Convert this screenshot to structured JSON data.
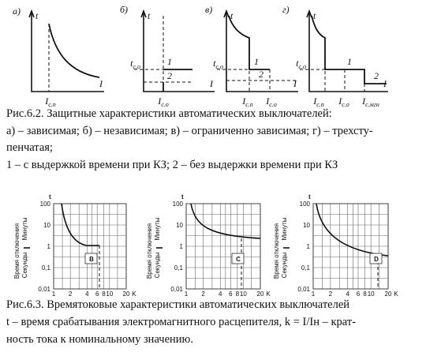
{
  "fig1": {
    "panels": [
      {
        "letter": "а)",
        "t": "t",
        "I": "I",
        "xticks": [
          {
            "main": "I",
            "sub": "с.п"
          }
        ]
      },
      {
        "letter": "б)",
        "t": "t",
        "I": "I",
        "tco": {
          "main": "t",
          "sub": "с.о"
        },
        "c1": "1",
        "c2": "2",
        "xticks": [
          {
            "main": "I",
            "sub": "с.о"
          }
        ]
      },
      {
        "letter": "в)",
        "t": "t",
        "I": "I",
        "tco": {
          "main": "t",
          "sub": "с.о"
        },
        "c1": "1",
        "c2": "2",
        "xticks": [
          {
            "main": "I",
            "sub": "с.п"
          },
          {
            "main": "I",
            "sub": "с.о"
          }
        ]
      },
      {
        "letter": "г)",
        "t": "t",
        "I": "I",
        "tco": {
          "main": "t",
          "sub": "с.о"
        },
        "c1": "1",
        "c2": "2",
        "xticks": [
          {
            "main": "I",
            "sub": "с.п"
          },
          {
            "main": "I",
            "sub": "с.о"
          },
          {
            "main": "I",
            "sub": "с.мгн"
          }
        ]
      }
    ],
    "caption": [
      "Рис.6.2. Защитные характеристики автоматических выключателей:",
      "а) – зависимая; б) – независимая; в) – ограниченно зависимая; г) – трехсту-",
      "пенчатая;",
      "1 – с выдержкой времени при КЗ; 2 – без выдержки времени при КЗ"
    ]
  },
  "fig2": {
    "panels": [
      {
        "letter": "B",
        "t": "t",
        "ytitle": "Время отключения",
        "minutes": "Минуты",
        "seconds": "Секунды",
        "yticks": [
          "100",
          "10",
          "1",
          "0,1",
          "0,01"
        ],
        "xticks": [
          "1",
          "2",
          "4",
          "6",
          "8",
          "10",
          "20",
          "K"
        ]
      },
      {
        "letter": "C",
        "t": "t",
        "ytitle": "Время отключения",
        "minutes": "Минуты",
        "seconds": "Секунды",
        "yticks": [
          "100",
          "10",
          "1",
          "0,1",
          "0,01"
        ],
        "xticks": [
          "1",
          "2",
          "4",
          "6",
          "8",
          "10",
          "20",
          "K"
        ]
      },
      {
        "letter": "D",
        "t": "t",
        "ytitle": "Время отключения",
        "minutes": "Минуты",
        "seconds": "Секунды",
        "yticks": [
          "100",
          "10",
          "1",
          "0,1",
          "0,01"
        ],
        "xticks": [
          "1",
          "2",
          "4",
          "6",
          "8",
          "10",
          "20",
          "K"
        ]
      }
    ],
    "caption": [
      "Рис.6.3. Времятоковые характеристики автоматических выключателей",
      "t – время срабатывания электромагнитного расцепителя, k = I/Iн – крат-",
      "ность тока к номинальному значению."
    ]
  }
}
